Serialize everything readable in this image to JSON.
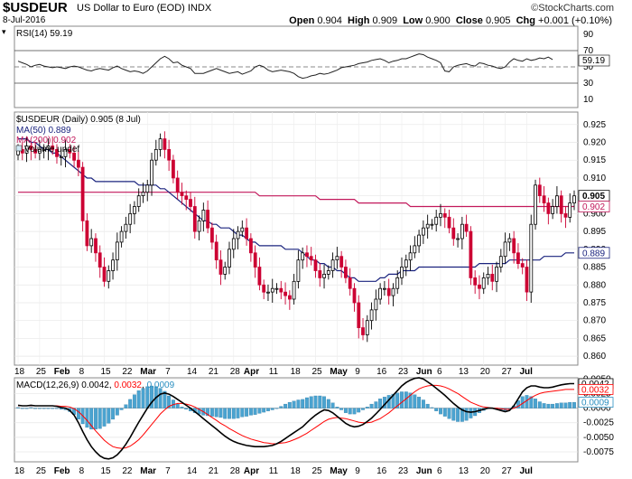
{
  "header": {
    "symbol": "$USDEUR",
    "description": "US Dollar to Euro (EOD)",
    "exchange": "INDX",
    "date": "8-Jul-2016",
    "brand": "StockCharts.com",
    "brand_symbol": "©",
    "open_label": "Open",
    "open": "0.904",
    "high_label": "High",
    "high": "0.909",
    "low_label": "Low",
    "low": "0.900",
    "close_label": "Close",
    "close": "0.905",
    "chg_label": "Chg",
    "chg": "+0.001 (+0.10%)",
    "dropdown_symbol": "▾"
  },
  "colors": {
    "up": "#ffffff",
    "down": "#cc0033",
    "ma50": "#1a237e",
    "ma200": "#c2185b",
    "macd_line": "#000000",
    "signal_line": "#ff0000",
    "histogram": "#4aa3d0"
  },
  "chart_data": [
    {
      "type": "line",
      "panel": "rsi",
      "legend": "RSI(14) 59.19",
      "ylim": [
        0,
        100
      ],
      "y_ticks": [
        10,
        30,
        50,
        70,
        90
      ],
      "current_label": "59.19",
      "values": [
        57,
        55,
        53,
        50,
        52,
        53,
        51,
        50,
        49,
        50,
        49,
        48,
        50,
        51,
        50,
        48,
        46,
        45,
        47,
        48,
        47,
        46,
        49,
        51,
        48,
        46,
        44,
        45,
        44,
        42,
        45,
        50,
        55,
        60,
        63,
        60,
        55,
        56,
        52,
        50,
        48,
        42,
        42,
        42,
        44,
        46,
        48,
        46,
        44,
        42,
        43,
        44,
        41,
        43,
        45,
        50,
        52,
        50,
        46,
        44,
        45,
        46,
        45,
        44,
        42,
        38,
        36,
        37,
        39,
        40,
        42,
        41,
        42,
        44,
        46,
        49,
        50,
        51,
        52,
        54,
        55,
        56,
        58,
        59,
        60,
        58,
        55,
        57,
        58,
        60,
        60,
        62,
        64,
        66,
        65,
        62,
        60,
        58,
        55,
        45,
        44,
        50,
        52,
        53,
        54,
        52,
        51,
        55,
        54,
        52,
        51,
        49,
        48,
        50,
        56,
        60,
        58,
        57,
        60,
        58,
        59,
        61,
        60,
        62,
        59
      ]
    },
    {
      "type": "candlestick",
      "panel": "price",
      "legend": "$USDEUR (Daily) 0.905 (8 Jul)",
      "ylim": [
        0.8575,
        0.9285
      ],
      "y_ticks": [
        0.86,
        0.865,
        0.87,
        0.875,
        0.88,
        0.885,
        0.89,
        0.895,
        0.9,
        0.905,
        0.91,
        0.915,
        0.92,
        0.925
      ],
      "y_tick_labels": [
        "0.860",
        "0.865",
        "0.870",
        "0.875",
        "0.880",
        "0.885",
        "0.890",
        "0.895",
        "0.900",
        "0.905",
        "0.910",
        "0.915",
        "0.920",
        "0.925"
      ],
      "right_labels": {
        "close": "0.905",
        "ma200": "0.902",
        "ma50": "0.889"
      },
      "closes": [
        0.918,
        0.917,
        0.919,
        0.918,
        0.917,
        0.918,
        0.918,
        0.919,
        0.918,
        0.916,
        0.916,
        0.918,
        0.917,
        0.915,
        0.913,
        0.898,
        0.891,
        0.893,
        0.889,
        0.885,
        0.881,
        0.884,
        0.887,
        0.892,
        0.895,
        0.897,
        0.9,
        0.902,
        0.905,
        0.906,
        0.908,
        0.915,
        0.918,
        0.921,
        0.918,
        0.915,
        0.91,
        0.906,
        0.905,
        0.904,
        0.902,
        0.895,
        0.898,
        0.901,
        0.896,
        0.892,
        0.887,
        0.883,
        0.885,
        0.89,
        0.893,
        0.895,
        0.896,
        0.893,
        0.889,
        0.885,
        0.88,
        0.878,
        0.878,
        0.879,
        0.879,
        0.878,
        0.877,
        0.876,
        0.881,
        0.887,
        0.889,
        0.888,
        0.887,
        0.884,
        0.882,
        0.883,
        0.884,
        0.887,
        0.888,
        0.885,
        0.882,
        0.879,
        0.875,
        0.868,
        0.866,
        0.87,
        0.873,
        0.876,
        0.879,
        0.879,
        0.877,
        0.879,
        0.882,
        0.885,
        0.887,
        0.889,
        0.891,
        0.894,
        0.896,
        0.897,
        0.897,
        0.899,
        0.9,
        0.899,
        0.896,
        0.893,
        0.893,
        0.897,
        0.895,
        0.882,
        0.88,
        0.879,
        0.882,
        0.883,
        0.881,
        0.885,
        0.888,
        0.892,
        0.893,
        0.889,
        0.886,
        0.885,
        0.878,
        0.897,
        0.908,
        0.905,
        0.903,
        0.9,
        0.902,
        0.905,
        0.9,
        0.899,
        0.903,
        0.905
      ],
      "ma50": [
        0.921,
        0.921,
        0.921,
        0.92,
        0.92,
        0.919,
        0.918,
        0.918,
        0.917,
        0.917,
        0.916,
        0.915,
        0.914,
        0.913,
        0.912,
        0.911,
        0.91,
        0.91,
        0.909,
        0.909,
        0.909,
        0.909,
        0.909,
        0.909,
        0.909,
        0.909,
        0.909,
        0.909,
        0.908,
        0.908,
        0.908,
        0.908,
        0.908,
        0.907,
        0.907,
        0.906,
        0.905,
        0.904,
        0.903,
        0.902,
        0.901,
        0.9,
        0.899,
        0.898,
        0.898,
        0.897,
        0.897,
        0.896,
        0.896,
        0.896,
        0.895,
        0.894,
        0.894,
        0.893,
        0.892,
        0.892,
        0.891,
        0.891,
        0.891,
        0.891,
        0.891,
        0.891,
        0.89,
        0.89,
        0.89,
        0.89,
        0.889,
        0.888,
        0.887,
        0.887,
        0.886,
        0.886,
        0.885,
        0.885,
        0.884,
        0.884,
        0.883,
        0.882,
        0.882,
        0.881,
        0.881,
        0.881,
        0.881,
        0.881,
        0.882,
        0.882,
        0.883,
        0.883,
        0.883,
        0.884,
        0.884,
        0.884,
        0.884,
        0.885,
        0.885,
        0.885,
        0.885,
        0.885,
        0.885,
        0.885,
        0.885,
        0.885,
        0.885,
        0.885,
        0.885,
        0.885,
        0.885,
        0.886,
        0.886,
        0.886,
        0.886,
        0.886,
        0.886,
        0.886,
        0.887,
        0.887,
        0.887,
        0.887,
        0.887,
        0.887,
        0.887,
        0.887,
        0.888,
        0.888,
        0.888,
        0.888,
        0.888,
        0.889,
        0.889,
        0.889
      ],
      "ma200": [
        0.906,
        0.906,
        0.906,
        0.906,
        0.906,
        0.906,
        0.906,
        0.906,
        0.906,
        0.906,
        0.906,
        0.906,
        0.906,
        0.906,
        0.906,
        0.906,
        0.906,
        0.906,
        0.906,
        0.906,
        0.906,
        0.906,
        0.906,
        0.906,
        0.906,
        0.906,
        0.906,
        0.906,
        0.906,
        0.906,
        0.906,
        0.906,
        0.906,
        0.906,
        0.906,
        0.906,
        0.906,
        0.906,
        0.906,
        0.906,
        0.906,
        0.906,
        0.906,
        0.906,
        0.906,
        0.906,
        0.906,
        0.906,
        0.906,
        0.906,
        0.906,
        0.906,
        0.906,
        0.906,
        0.906,
        0.906,
        0.905,
        0.905,
        0.905,
        0.905,
        0.905,
        0.905,
        0.905,
        0.905,
        0.905,
        0.905,
        0.905,
        0.905,
        0.905,
        0.905,
        0.904,
        0.904,
        0.904,
        0.904,
        0.904,
        0.904,
        0.904,
        0.904,
        0.904,
        0.903,
        0.903,
        0.903,
        0.903,
        0.903,
        0.903,
        0.903,
        0.903,
        0.903,
        0.903,
        0.903,
        0.903,
        0.902,
        0.902,
        0.902,
        0.902,
        0.902,
        0.902,
        0.902,
        0.902,
        0.902,
        0.902,
        0.902,
        0.902,
        0.902,
        0.902,
        0.902,
        0.902,
        0.902,
        0.902,
        0.902,
        0.902,
        0.902,
        0.902,
        0.902,
        0.902,
        0.902,
        0.902,
        0.902,
        0.902,
        0.902,
        0.902,
        0.902,
        0.902,
        0.902,
        0.902,
        0.902,
        0.902,
        0.902,
        0.902,
        0.902
      ],
      "series": [
        {
          "name": "MA(50) 0.889",
          "key": "ma50"
        },
        {
          "name": "MA(200) 0.902",
          "key": "ma200"
        },
        {
          "name": "Volume undef",
          "key": "volume"
        }
      ]
    },
    {
      "type": "line",
      "panel": "macd",
      "legend_prefix": "MACD(12,26,9)",
      "legend_macd": "0.0042",
      "legend_signal": "0.0032",
      "legend_hist": "0.0009",
      "ylim": [
        -0.0092,
        0.0052
      ],
      "y_ticks": [
        0.005,
        0.0025,
        0.0,
        -0.0025,
        -0.005,
        -0.0075
      ],
      "y_tick_labels": [
        "0.0050",
        "0.0025",
        "0.0000",
        "-0.0025",
        "-0.0050",
        "-0.0075"
      ],
      "right_labels": {
        "macd": "0.0042",
        "signal": "0.0032",
        "hist": "0.0009"
      },
      "macd": [
        0.0005,
        0.0004,
        0.0004,
        0.0005,
        0.0004,
        0.0004,
        0.0004,
        0.0004,
        0.0004,
        0.0003,
        0.0001,
        0.0,
        -0.0004,
        -0.0012,
        -0.0025,
        -0.004,
        -0.0054,
        -0.0066,
        -0.0075,
        -0.0082,
        -0.0086,
        -0.0087,
        -0.0085,
        -0.008,
        -0.0072,
        -0.0062,
        -0.005,
        -0.0037,
        -0.0024,
        -0.0012,
        0.0,
        0.001,
        0.0018,
        0.0024,
        0.0026,
        0.0024,
        0.002,
        0.0015,
        0.001,
        0.0005,
        0.0,
        -0.0006,
        -0.0012,
        -0.0018,
        -0.0024,
        -0.003,
        -0.0036,
        -0.0042,
        -0.0048,
        -0.0053,
        -0.0057,
        -0.006,
        -0.0062,
        -0.0064,
        -0.0065,
        -0.0066,
        -0.0066,
        -0.0066,
        -0.0065,
        -0.0064,
        -0.0061,
        -0.0057,
        -0.0052,
        -0.0047,
        -0.0042,
        -0.0037,
        -0.0032,
        -0.0025,
        -0.0018,
        -0.0012,
        -0.0007,
        -0.0003,
        -0.0004,
        -0.0008,
        -0.0014,
        -0.002,
        -0.0026,
        -0.003,
        -0.0032,
        -0.0031,
        -0.0028,
        -0.0023,
        -0.0017,
        -0.001,
        -0.0002,
        0.0006,
        0.0014,
        0.0022,
        0.003,
        0.0038,
        0.0044,
        0.0048,
        0.0051,
        0.0052,
        0.005,
        0.0045,
        0.004,
        0.0034,
        0.0028,
        0.0022,
        0.0015,
        0.0008,
        0.0002,
        -0.0003,
        -0.0006,
        -0.0007,
        -0.0006,
        -0.0004,
        -0.0002,
        0.0,
        0.0,
        -0.0002,
        -0.0004,
        -0.0006,
        -0.0004,
        0.0004,
        0.0016,
        0.0028,
        0.0035,
        0.0038,
        0.0038,
        0.0036,
        0.0035,
        0.0035,
        0.0036,
        0.0038,
        0.004,
        0.0041,
        0.0042,
        0.0042
      ],
      "signal": [
        0.0004,
        0.0004,
        0.0004,
        0.0004,
        0.0004,
        0.0004,
        0.0004,
        0.0004,
        0.0004,
        0.0004,
        0.0003,
        0.0003,
        0.0002,
        -0.0001,
        -0.0006,
        -0.0013,
        -0.0021,
        -0.003,
        -0.0039,
        -0.0047,
        -0.0055,
        -0.0061,
        -0.0066,
        -0.0068,
        -0.0069,
        -0.0068,
        -0.0065,
        -0.006,
        -0.0054,
        -0.0046,
        -0.0037,
        -0.0028,
        -0.0019,
        -0.001,
        -0.0003,
        0.0003,
        0.0006,
        0.0008,
        0.0008,
        0.0007,
        0.0005,
        0.0002,
        -0.0002,
        -0.0006,
        -0.0011,
        -0.0016,
        -0.0021,
        -0.0026,
        -0.003,
        -0.0035,
        -0.0039,
        -0.0043,
        -0.0047,
        -0.005,
        -0.0053,
        -0.0055,
        -0.0057,
        -0.0059,
        -0.006,
        -0.0061,
        -0.0061,
        -0.006,
        -0.0059,
        -0.0057,
        -0.0054,
        -0.0051,
        -0.0047,
        -0.0043,
        -0.0038,
        -0.0033,
        -0.0028,
        -0.0023,
        -0.0019,
        -0.0017,
        -0.0016,
        -0.0017,
        -0.0018,
        -0.002,
        -0.0022,
        -0.0024,
        -0.0025,
        -0.0025,
        -0.0024,
        -0.0021,
        -0.0018,
        -0.0013,
        -0.0008,
        -0.0002,
        0.0004,
        0.001,
        0.0016,
        0.0022,
        0.0028,
        0.0033,
        0.0036,
        0.0038,
        0.0039,
        0.0039,
        0.0038,
        0.0036,
        0.0033,
        0.0029,
        0.0025,
        0.002,
        0.0015,
        0.001,
        0.0007,
        0.0004,
        0.0002,
        0.0001,
        0.0,
        0.0,
        -0.0001,
        -0.0002,
        -0.0002,
        0.0,
        0.0003,
        0.0008,
        0.0013,
        0.0018,
        0.0022,
        0.0025,
        0.0027,
        0.0028,
        0.0029,
        0.003,
        0.0031,
        0.0032,
        0.0032,
        0.0032
      ]
    }
  ],
  "x_axis": {
    "labels": [
      {
        "text": "18",
        "i": 0
      },
      {
        "text": "25",
        "i": 5
      },
      {
        "text": "Feb",
        "i": 10,
        "bold": true
      },
      {
        "text": "8",
        "i": 15
      },
      {
        "text": "15",
        "i": 20
      },
      {
        "text": "22",
        "i": 25
      },
      {
        "text": "Mar",
        "i": 30,
        "bold": true
      },
      {
        "text": "7",
        "i": 35
      },
      {
        "text": "14",
        "i": 40
      },
      {
        "text": "21",
        "i": 45
      },
      {
        "text": "28",
        "i": 50
      },
      {
        "text": "Apr",
        "i": 54,
        "bold": true
      },
      {
        "text": "11",
        "i": 59
      },
      {
        "text": "18",
        "i": 64
      },
      {
        "text": "25",
        "i": 69
      },
      {
        "text": "May",
        "i": 74,
        "bold": true
      },
      {
        "text": "9",
        "i": 79
      },
      {
        "text": "16",
        "i": 84
      },
      {
        "text": "23",
        "i": 89
      },
      {
        "text": "Jun",
        "i": 94,
        "bold": true
      },
      {
        "text": "6",
        "i": 98
      },
      {
        "text": "13",
        "i": 103
      },
      {
        "text": "20",
        "i": 108
      },
      {
        "text": "27",
        "i": 113
      },
      {
        "text": "Jul",
        "i": 118,
        "bold": true
      }
    ]
  }
}
